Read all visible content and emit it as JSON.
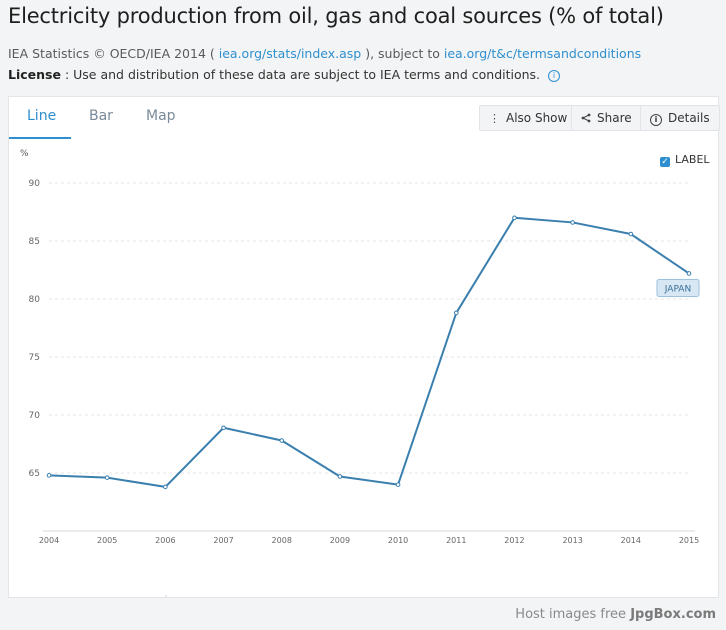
{
  "header": {
    "title": "Electricity production from oil, gas and coal sources (% of total)",
    "source_prefix": "IEA Statistics © OECD/IEA 2014 ( ",
    "source_link": "iea.org/stats/index.asp",
    "source_middle": " ), subject to ",
    "terms_link": "iea.org/t&c/termsandconditions",
    "license_label": "License",
    "license_text": " : Use and distribution of these data are subject to IEA terms and conditions."
  },
  "tabs": [
    {
      "label": "Line"
    },
    {
      "label": "Bar"
    },
    {
      "label": "Map"
    }
  ],
  "toolbar": {
    "also_show": "Also Show",
    "share": "Share",
    "details": "Details"
  },
  "label_toggle": "LABEL",
  "chart_data": {
    "type": "line",
    "y_unit": "%",
    "x": [
      "2004",
      "2005",
      "2006",
      "2007",
      "2008",
      "2009",
      "2010",
      "2011",
      "2012",
      "2013",
      "2014",
      "2015"
    ],
    "series": [
      {
        "name": "JAPAN",
        "values": [
          64.8,
          64.6,
          63.8,
          68.9,
          67.8,
          64.7,
          64.0,
          78.8,
          87.0,
          86.6,
          85.6,
          82.2
        ]
      }
    ],
    "y_ticks": [
      65,
      70,
      75,
      80,
      85,
      90
    ],
    "ylim": [
      60,
      90
    ],
    "grid": true,
    "line_color": "#3a7fae"
  },
  "watermark": {
    "prefix": "Host images free ",
    "brand": "JpgBox.com"
  }
}
